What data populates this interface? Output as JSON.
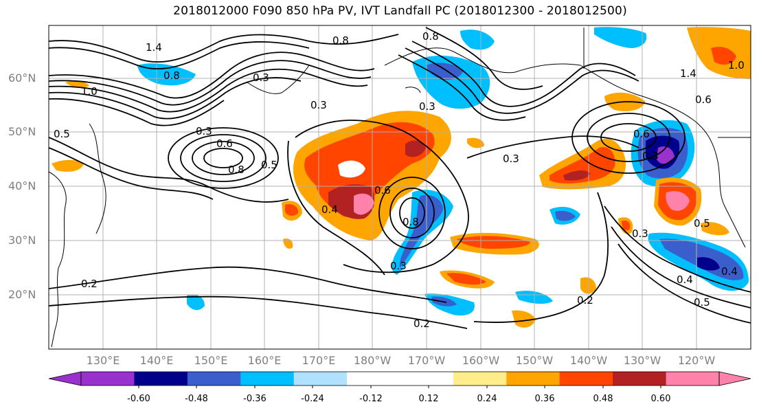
{
  "title": "2018012000 F090 850 hPa PV, IVT Landfall PC (2018012300 - 2018012500)",
  "lat_labels": [
    "60°N",
    "50°N",
    "40°N",
    "30°N",
    "20°N"
  ],
  "lon_labels": [
    "130°E",
    "140°E",
    "150°E",
    "160°E",
    "170°E",
    "180°W",
    "170°W",
    "160°W",
    "150°W",
    "140°W",
    "130°W",
    "120°W"
  ],
  "contour_labels": [
    "1.4",
    "1.0",
    "0.8",
    "0.5",
    "0.3",
    "0.6",
    "0.8",
    "0.5",
    "0.8",
    "0.3",
    "0.8",
    "0.2",
    "0.3",
    "1.4",
    "0.6",
    "0.3",
    "0.6",
    "0.4",
    "0.8",
    "0.3",
    "0.3",
    "0.2",
    "0.2",
    "0.4",
    "0.5",
    "0.3",
    "0.5",
    "0.6",
    "0.3",
    "1.0",
    "0.4"
  ],
  "colorbar": {
    "colors": [
      "#9932cc",
      "#00008b",
      "#3a5fcd",
      "#00bfff",
      "#b0e2ff",
      "#ffffff",
      "#ffffff",
      "#ffec8b",
      "#ffa500",
      "#ff4500",
      "#b22222",
      "#ff82ab"
    ],
    "tick_labels": [
      "-0.60",
      "-0.48",
      "-0.36",
      "-0.24",
      "-0.12",
      "0.12",
      "0.24",
      "0.36",
      "0.48",
      "0.60"
    ]
  }
}
